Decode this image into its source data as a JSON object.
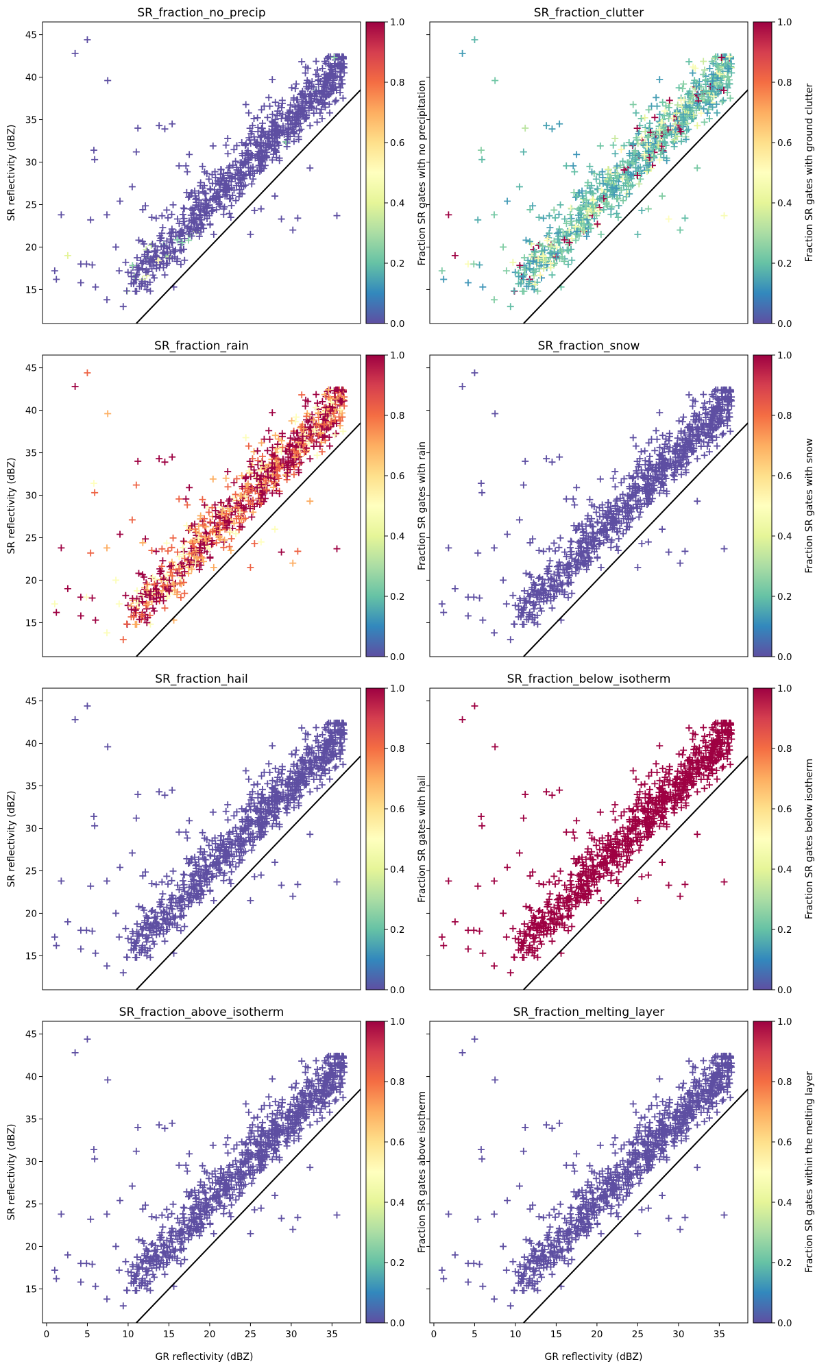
{
  "figure": {
    "xlabel": "GR reflectivity (dBZ)",
    "ylabel": "SR reflectivity (dBZ)"
  },
  "chart_data": [
    {
      "type": "scatter",
      "title": "SR_fraction_no_precip",
      "colorbar_label": "Fraction SR gates with no precipitation",
      "mode": "no_precip"
    },
    {
      "type": "scatter",
      "title": "SR_fraction_clutter",
      "colorbar_label": "Fraction SR gates with ground clutter",
      "mode": "clutter"
    },
    {
      "type": "scatter",
      "title": "SR_fraction_rain",
      "colorbar_label": "Fraction SR gates with rain",
      "mode": "rain"
    },
    {
      "type": "scatter",
      "title": "SR_fraction_snow",
      "colorbar_label": "Fraction SR gates with snow",
      "mode": "zero"
    },
    {
      "type": "scatter",
      "title": "SR_fraction_hail",
      "colorbar_label": "Fraction SR gates with hail",
      "mode": "zero"
    },
    {
      "type": "scatter",
      "title": "SR_fraction_below_isotherm",
      "colorbar_label": "Fraction SR gates below isotherm",
      "mode": "one"
    },
    {
      "type": "scatter",
      "title": "SR_fraction_above_isotherm",
      "colorbar_label": "Fraction SR gates above isotherm",
      "mode": "zero"
    },
    {
      "type": "scatter",
      "title": "SR_fraction_melting_layer",
      "colorbar_label": "Fraction SR gates within the melting layer",
      "mode": "zero"
    }
  ],
  "shared": {
    "xlim": [
      -0.5,
      38.5
    ],
    "ylim": [
      11,
      46.5
    ],
    "xticks": [
      0,
      5,
      10,
      15,
      20,
      25,
      30,
      35
    ],
    "yticks": [
      15,
      20,
      25,
      30,
      35,
      40,
      45
    ],
    "colorbar_ticks": [
      "0.0",
      "0.2",
      "0.4",
      "0.6",
      "0.8",
      "1.0"
    ],
    "colormap": "Spectral_r",
    "colormap_stops": [
      "#5e4fa2",
      "#3288bd",
      "#66c2a5",
      "#abdda4",
      "#e6f598",
      "#ffffbf",
      "#fee08b",
      "#fdae61",
      "#f46d43",
      "#d53e4f",
      "#9e0142"
    ],
    "reference_line": "1:1",
    "marker": "+",
    "outliers": [
      [
        1.0,
        17.2
      ],
      [
        1.2,
        16.2
      ],
      [
        1.8,
        23.8
      ],
      [
        2.6,
        19.0
      ],
      [
        3.5,
        42.8
      ],
      [
        4.2,
        15.8
      ],
      [
        4.2,
        18.0
      ],
      [
        5.0,
        44.4
      ],
      [
        4.9,
        18.0
      ],
      [
        5.4,
        23.2
      ],
      [
        5.6,
        17.9
      ],
      [
        5.8,
        31.4
      ],
      [
        5.9,
        30.3
      ],
      [
        6.0,
        15.3
      ],
      [
        7.4,
        23.8
      ],
      [
        7.5,
        39.6
      ],
      [
        7.4,
        13.8
      ],
      [
        8.5,
        20.0
      ],
      [
        8.9,
        17.2
      ],
      [
        9.0,
        25.4
      ],
      [
        9.4,
        13.0
      ],
      [
        9.7,
        18.2
      ],
      [
        10.5,
        27.1
      ],
      [
        11.0,
        31.2
      ],
      [
        11.2,
        34.0
      ],
      [
        11.8,
        24.4
      ],
      [
        12.3,
        15.0
      ],
      [
        12.9,
        23.5
      ],
      [
        13.8,
        34.3
      ],
      [
        14.5,
        33.9
      ],
      [
        15.4,
        34.5
      ],
      [
        15.6,
        15.3
      ],
      [
        16.6,
        22.0
      ],
      [
        17.5,
        30.9
      ],
      [
        19.2,
        26.5
      ],
      [
        22.0,
        32.0
      ],
      [
        25.5,
        24.3
      ],
      [
        26.3,
        24.5
      ],
      [
        28.8,
        23.3
      ],
      [
        30.2,
        22.0
      ],
      [
        30.8,
        23.4
      ],
      [
        32.3,
        29.3
      ],
      [
        35.6,
        23.7
      ],
      [
        36.5,
        40.5
      ],
      [
        36.0,
        41.2
      ],
      [
        22.6,
        23.5
      ],
      [
        17.8,
        21.3
      ],
      [
        25.0,
        21.5
      ],
      [
        28.0,
        26.0
      ],
      [
        20.5,
        21.5
      ]
    ],
    "band": {
      "n": 880,
      "x_range": [
        9.8,
        36.5
      ],
      "slope": 0.98,
      "intercept": 5.0,
      "spread": 1.3,
      "tail": 0.42,
      "jitter": 2.2
    }
  }
}
